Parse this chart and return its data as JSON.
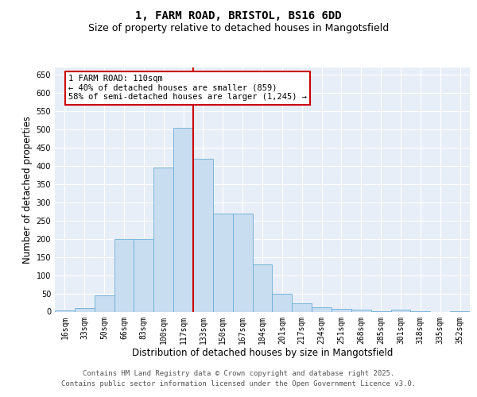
{
  "title1": "1, FARM ROAD, BRISTOL, BS16 6DD",
  "title2": "Size of property relative to detached houses in Mangotsfield",
  "xlabel": "Distribution of detached houses by size in Mangotsfield",
  "ylabel": "Number of detached properties",
  "bar_labels": [
    "16sqm",
    "33sqm",
    "50sqm",
    "66sqm",
    "83sqm",
    "100sqm",
    "117sqm",
    "133sqm",
    "150sqm",
    "167sqm",
    "184sqm",
    "201sqm",
    "217sqm",
    "234sqm",
    "251sqm",
    "268sqm",
    "285sqm",
    "301sqm",
    "318sqm",
    "335sqm",
    "352sqm"
  ],
  "bar_values": [
    3,
    10,
    45,
    200,
    200,
    395,
    505,
    420,
    270,
    270,
    130,
    50,
    22,
    12,
    7,
    5,
    2,
    5,
    1,
    0,
    2
  ],
  "bar_color": "#c9ddf0",
  "bar_edge_color": "#6aaed6",
  "vline_x": 6.5,
  "vline_color": "#cc0000",
  "annotation_title": "1 FARM ROAD: 110sqm",
  "annotation_line1": "← 40% of detached houses are smaller (859)",
  "annotation_line2": "58% of semi-detached houses are larger (1,245) →",
  "annotation_box_color": "#cc0000",
  "annotation_text_color": "#000000",
  "annotation_bg": "#ffffff",
  "yticks": [
    0,
    50,
    100,
    150,
    200,
    250,
    300,
    350,
    400,
    450,
    500,
    550,
    600,
    650
  ],
  "ylim": [
    0,
    670
  ],
  "plot_bg": "#e8eef7",
  "footer1": "Contains HM Land Registry data © Crown copyright and database right 2025.",
  "footer2": "Contains public sector information licensed under the Open Government Licence v3.0.",
  "title_fontsize": 10,
  "subtitle_fontsize": 9,
  "axis_label_fontsize": 8.5,
  "tick_fontsize": 7,
  "annotation_fontsize": 7.5,
  "footer_fontsize": 6.5
}
